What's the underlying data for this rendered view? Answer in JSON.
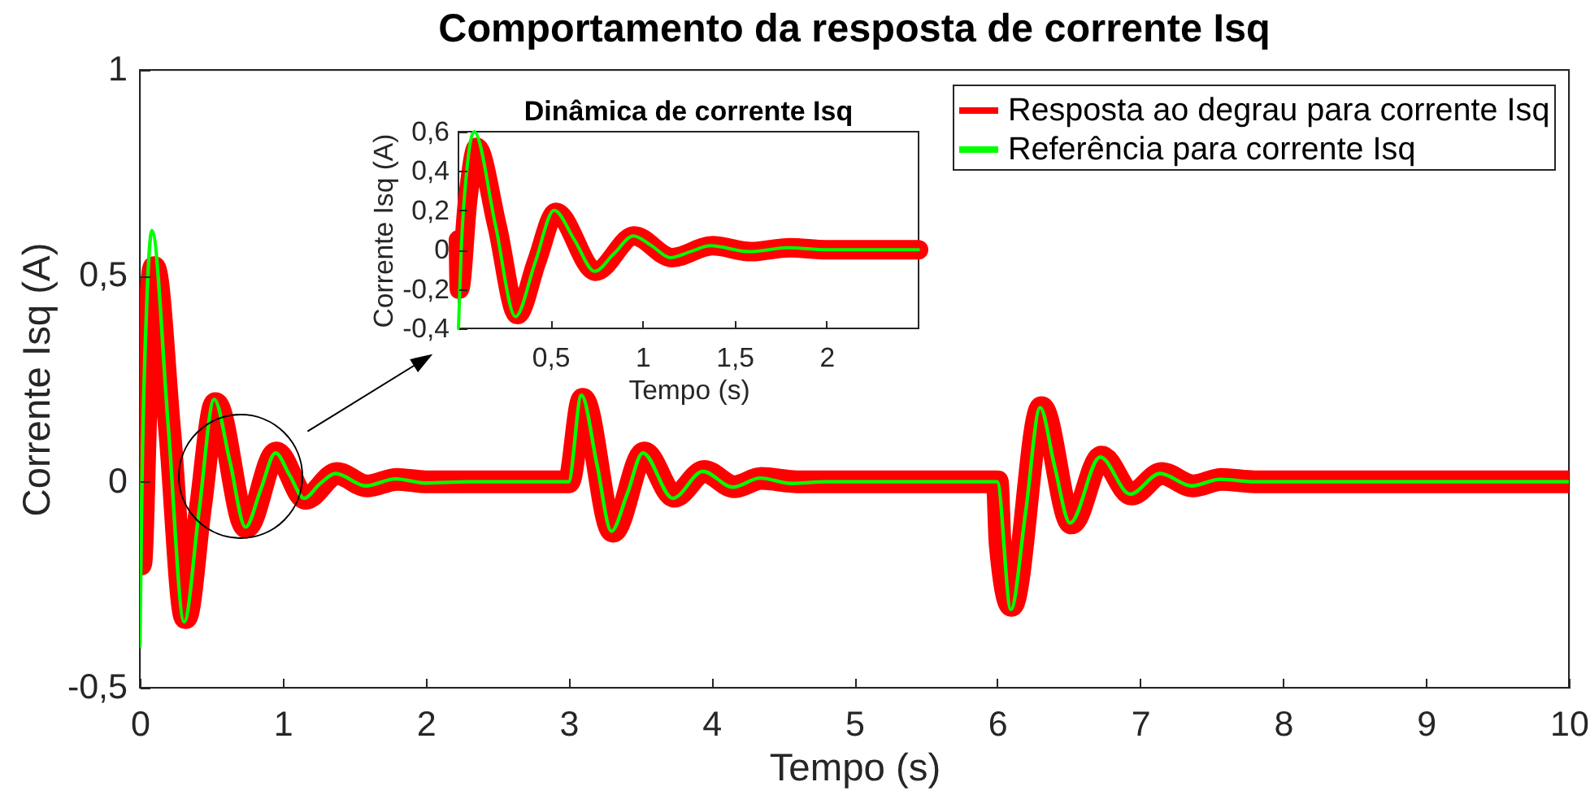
{
  "chart_data": [
    {
      "type": "line",
      "title": "Comportamento da resposta de corrente Isq",
      "xlabel": "Tempo (s)",
      "ylabel": "Corrente Isq (A)",
      "xlim": [
        0,
        10
      ],
      "ylim": [
        -0.5,
        1
      ],
      "xticks": [
        0,
        1,
        2,
        3,
        4,
        5,
        6,
        7,
        8,
        9,
        10
      ],
      "yticks": [
        {
          "value": -0.5,
          "label": "-0,5"
        },
        0,
        {
          "value": 0.5,
          "label": "0,5"
        },
        1
      ],
      "legend": "top right",
      "series": [
        {
          "name": "Resposta ao degrau para corrente Isq",
          "color": "#ff0000",
          "x": [
            0,
            0.005,
            0.05,
            0.1,
            0.21,
            0.32,
            0.425,
            0.53,
            0.745,
            0.955,
            1.16,
            1.38,
            1.59,
            1.8,
            2.0,
            3.0,
            3.1,
            3.31,
            3.53,
            3.74,
            3.95,
            4.16,
            4.35,
            4.6,
            6.0,
            6.02,
            6.1,
            6.31,
            6.52,
            6.73,
            6.94,
            7.15,
            7.37,
            7.57,
            7.8,
            10
          ],
          "values": [
            0.05,
            -0.2,
            0.25,
            0.52,
            0.12,
            -0.33,
            -0.06,
            0.19,
            -0.11,
            0.07,
            -0.04,
            0.02,
            -0.01,
            0.006,
            0,
            0,
            0.2,
            -0.12,
            0.07,
            -0.035,
            0.025,
            -0.012,
            0.008,
            0,
            0,
            -0.15,
            -0.3,
            0.18,
            -0.1,
            0.06,
            -0.03,
            0.02,
            -0.01,
            0.006,
            0,
            0
          ]
        },
        {
          "name": "Referência para corrente Isq",
          "color": "#00ff00",
          "x": [
            0,
            0.015,
            0.045,
            0.085,
            0.2,
            0.31,
            0.415,
            0.52,
            0.63,
            0.74,
            0.845,
            0.95,
            1.05,
            1.15,
            1.26,
            1.37,
            1.58,
            1.79,
            2.0,
            2.3,
            3.0,
            3.09,
            3.2,
            3.3,
            3.41,
            3.52,
            3.73,
            3.94,
            4.15,
            4.34,
            4.56,
            4.8,
            6.0,
            6.095,
            6.2,
            6.3,
            6.4,
            6.51,
            6.72,
            6.93,
            7.14,
            7.36,
            7.56,
            7.8,
            10
          ],
          "values": [
            -0.4,
            0.0,
            0.4,
            0.61,
            0.13,
            -0.34,
            -0.07,
            0.2,
            0.05,
            -0.11,
            -0.02,
            0.07,
            0.015,
            -0.04,
            -0.005,
            0.02,
            -0.01,
            0.007,
            -0.003,
            0,
            0,
            0.21,
            0.04,
            -0.12,
            -0.03,
            0.07,
            -0.04,
            0.025,
            -0.013,
            0.009,
            -0.004,
            0,
            0,
            -0.31,
            -0.07,
            0.18,
            0.04,
            -0.1,
            0.06,
            -0.03,
            0.02,
            -0.01,
            0.006,
            0,
            0
          ]
        }
      ]
    },
    {
      "type": "line",
      "title": "Dinâmica de corrente Isq",
      "xlabel": "Tempo (s)",
      "ylabel": "Corrente Isq (A)",
      "xlim": [
        0,
        2.5
      ],
      "ylim": [
        -0.4,
        0.6
      ],
      "xticks": [
        {
          "value": 0.5,
          "label": "0,5"
        },
        1,
        {
          "value": 1.5,
          "label": "1,5"
        },
        2
      ],
      "yticks": [
        {
          "value": -0.4,
          "label": "-0,4"
        },
        {
          "value": -0.2,
          "label": "-0,2"
        },
        0,
        {
          "value": 0.2,
          "label": "0,2"
        },
        {
          "value": 0.4,
          "label": "0,4"
        },
        {
          "value": 0.6,
          "label": "0,6"
        }
      ],
      "series": [
        {
          "color": "#ff0000",
          "x": [
            0,
            0.005,
            0.05,
            0.1,
            0.21,
            0.32,
            0.425,
            0.53,
            0.745,
            0.955,
            1.16,
            1.38,
            1.59,
            1.8,
            2.0,
            2.5
          ],
          "values": [
            0.05,
            -0.2,
            0.25,
            0.52,
            0.12,
            -0.33,
            -0.06,
            0.19,
            -0.11,
            0.07,
            -0.04,
            0.02,
            -0.01,
            0.01,
            0,
            0
          ]
        },
        {
          "color": "#00ff00",
          "x": [
            0,
            0.015,
            0.045,
            0.085,
            0.2,
            0.31,
            0.415,
            0.52,
            0.63,
            0.74,
            0.845,
            0.95,
            1.05,
            1.15,
            1.26,
            1.37,
            1.58,
            1.79,
            2.0,
            2.5
          ],
          "values": [
            -0.4,
            0.0,
            0.4,
            0.6,
            0.13,
            -0.34,
            -0.07,
            0.2,
            0.05,
            -0.11,
            -0.02,
            0.07,
            0.02,
            -0.04,
            -0.01,
            0.02,
            -0.01,
            0.01,
            0,
            0
          ]
        }
      ]
    }
  ]
}
